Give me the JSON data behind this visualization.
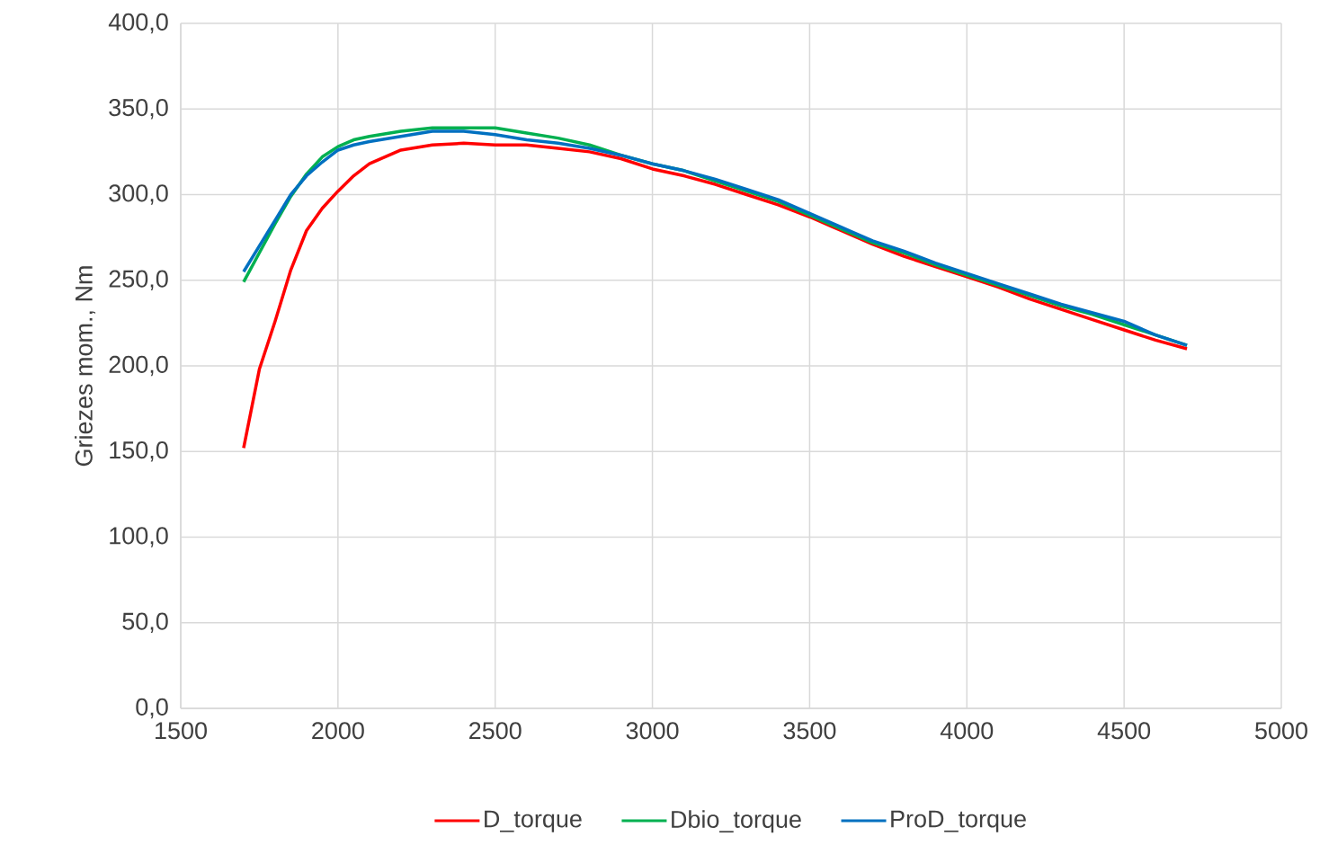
{
  "chart_data": {
    "type": "line",
    "ylabel": "Griezes mom., Nm",
    "x": [
      1700,
      1750,
      1800,
      1850,
      1900,
      1950,
      2000,
      2050,
      2100,
      2200,
      2300,
      2400,
      2500,
      2600,
      2700,
      2800,
      2900,
      3000,
      3100,
      3200,
      3300,
      3400,
      3500,
      3600,
      3700,
      3800,
      3900,
      4000,
      4100,
      4200,
      4300,
      4400,
      4500,
      4600,
      4700
    ],
    "series": [
      {
        "name": "D_torque",
        "color": "#ff0000",
        "values": [
          152,
          198,
          226,
          256,
          279,
          292,
          302,
          311,
          318,
          326,
          329,
          330,
          329,
          329,
          327,
          325,
          321,
          315,
          311,
          306,
          300,
          294,
          287,
          279,
          271,
          264,
          258,
          252,
          246,
          239,
          233,
          227,
          221,
          215,
          210
        ]
      },
      {
        "name": "Dbio_torque",
        "color": "#00b050",
        "values": [
          249,
          266,
          283,
          299,
          312,
          322,
          328,
          332,
          334,
          337,
          339,
          339,
          339,
          336,
          333,
          329,
          323,
          318,
          314,
          308,
          302,
          296,
          288,
          280,
          272,
          266,
          259,
          253,
          247,
          241,
          235,
          230,
          224,
          218,
          212
        ]
      },
      {
        "name": "ProD_torque",
        "color": "#0070c0",
        "values": [
          255,
          270,
          285,
          300,
          311,
          319,
          326,
          329,
          331,
          334,
          337,
          337,
          335,
          332,
          330,
          327,
          323,
          318,
          314,
          309,
          303,
          297,
          289,
          281,
          273,
          267,
          260,
          254,
          248,
          242,
          236,
          231,
          226,
          218,
          212
        ]
      }
    ],
    "xlim": [
      1500,
      5000
    ],
    "xticks": [
      1500,
      2000,
      2500,
      3000,
      3500,
      4000,
      4500,
      5000
    ],
    "ylim": [
      0,
      400
    ],
    "yticks": [
      {
        "value": 0,
        "label": "0,0"
      },
      {
        "value": 50,
        "label": "50,0"
      },
      {
        "value": 100,
        "label": "100,0"
      },
      {
        "value": 150,
        "label": "150,0"
      },
      {
        "value": 200,
        "label": "200,0"
      },
      {
        "value": 250,
        "label": "250,0"
      },
      {
        "value": 300,
        "label": "300,0"
      },
      {
        "value": 350,
        "label": "350,0"
      },
      {
        "value": 400,
        "label": "400,0"
      }
    ],
    "grid": true,
    "legend": "bottom"
  }
}
